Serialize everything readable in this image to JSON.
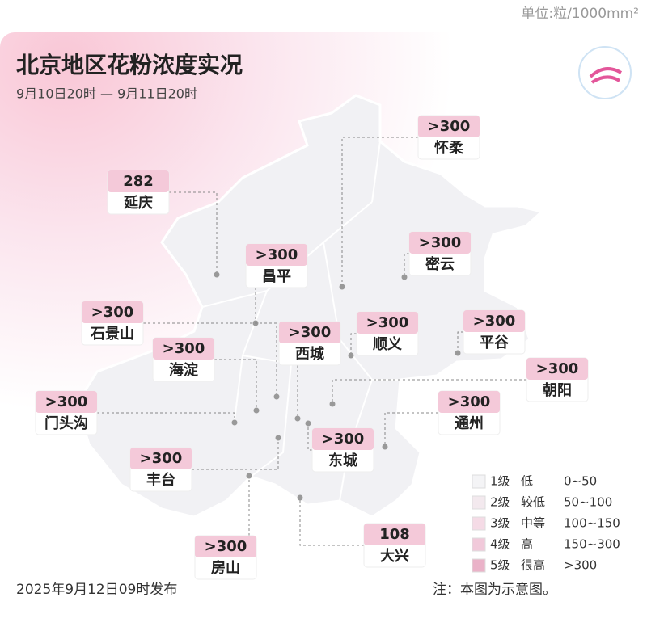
{
  "unit": "单位:粒/1000mm²",
  "title": "北京地区花粉浓度实况",
  "period": "9月10日20时 — 9月11日20时",
  "districts": [
    {
      "name": "怀柔",
      "value": ">300"
    },
    {
      "name": "延庆",
      "value": 282
    },
    {
      "name": "昌平",
      "value": ">300"
    },
    {
      "name": "密云",
      "value": ">300"
    },
    {
      "name": "石景山",
      "value": ">300"
    },
    {
      "name": "海淀",
      "value": ">300"
    },
    {
      "name": "西城",
      "value": ">300"
    },
    {
      "name": "顺义",
      "value": ">300"
    },
    {
      "name": "平谷",
      "value": ">300"
    },
    {
      "name": "朝阳",
      "value": ">300"
    },
    {
      "name": "门头沟",
      "value": ">300"
    },
    {
      "name": "通州",
      "value": ">300"
    },
    {
      "name": "东城",
      "value": ">300"
    },
    {
      "name": "丰台",
      "value": ">300"
    },
    {
      "name": "房山",
      "value": ">300"
    },
    {
      "name": "大兴",
      "value": 108
    }
  ],
  "legend": [
    {
      "level": "1级",
      "desc": "低",
      "range": "0~50"
    },
    {
      "level": "2级",
      "desc": "较低",
      "range": "50~100"
    },
    {
      "level": "3级",
      "desc": "中等",
      "range": "100~150"
    },
    {
      "level": "4级",
      "desc": "高",
      "range": "150~300"
    },
    {
      "level": "5级",
      "desc": "很高",
      "range": ">300"
    }
  ],
  "footer": {
    "issued": "2025年9月12日09时发布",
    "note": "注：本图为示意图。"
  }
}
